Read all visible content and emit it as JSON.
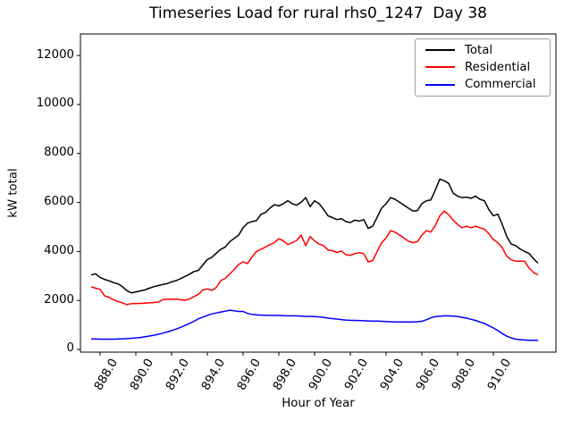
{
  "chart_data": {
    "type": "line",
    "title": "Timeseries Load for rural rhs0_1247  Day 38",
    "xlabel": "Hour of Year",
    "ylabel": "kW total",
    "xlim": [
      886.9,
      913.5
    ],
    "ylim": [
      -110,
      12880
    ],
    "xticks": [
      888,
      890,
      892,
      894,
      896,
      898,
      900,
      902,
      904,
      906,
      908,
      910
    ],
    "xtick_labels": [
      "888.0",
      "890.0",
      "892.0",
      "894.0",
      "896.0",
      "898.0",
      "900.0",
      "902.0",
      "904.0",
      "906.0",
      "908.0",
      "910.0"
    ],
    "yticks": [
      0,
      2000,
      4000,
      6000,
      8000,
      10000,
      12000
    ],
    "ytick_labels": [
      "0",
      "2000",
      "4000",
      "6000",
      "8000",
      "10000",
      "12000"
    ],
    "grid": false,
    "legend_position": "upper right",
    "x_start": 887.5,
    "x_step": 0.25,
    "series": [
      {
        "name": "Total",
        "color": "#000000",
        "values": [
          3040,
          3090,
          2940,
          2860,
          2800,
          2730,
          2680,
          2560,
          2400,
          2310,
          2350,
          2390,
          2430,
          2500,
          2560,
          2610,
          2650,
          2690,
          2760,
          2810,
          2890,
          2980,
          3070,
          3180,
          3230,
          3450,
          3670,
          3760,
          3930,
          4090,
          4180,
          4400,
          4530,
          4670,
          4970,
          5160,
          5220,
          5260,
          5520,
          5590,
          5770,
          5910,
          5860,
          5950,
          6070,
          5950,
          5890,
          6010,
          6200,
          5830,
          6070,
          5950,
          5720,
          5460,
          5380,
          5300,
          5340,
          5220,
          5180,
          5280,
          5240,
          5300,
          4940,
          5030,
          5400,
          5770,
          5950,
          6200,
          6130,
          6010,
          5890,
          5770,
          5650,
          5670,
          5950,
          6070,
          6100,
          6500,
          6950,
          6890,
          6780,
          6380,
          6260,
          6200,
          6220,
          6170,
          6260,
          6130,
          6070,
          5710,
          5460,
          5520,
          5100,
          4610,
          4300,
          4240,
          4100,
          4000,
          3920,
          3700,
          3520
        ]
      },
      {
        "name": "Residential",
        "color": "#ff0000",
        "values": [
          2560,
          2500,
          2450,
          2190,
          2130,
          2030,
          1960,
          1900,
          1830,
          1870,
          1875,
          1880,
          1890,
          1900,
          1915,
          1930,
          2030,
          2050,
          2050,
          2050,
          2030,
          2010,
          2060,
          2160,
          2250,
          2430,
          2470,
          2410,
          2530,
          2810,
          2900,
          3080,
          3260,
          3470,
          3570,
          3510,
          3780,
          4000,
          4090,
          4180,
          4280,
          4360,
          4520,
          4430,
          4280,
          4360,
          4450,
          4670,
          4240,
          4610,
          4430,
          4300,
          4240,
          4060,
          4030,
          3960,
          4020,
          3870,
          3840,
          3910,
          3950,
          3910,
          3570,
          3630,
          4000,
          4360,
          4550,
          4850,
          4790,
          4670,
          4550,
          4420,
          4360,
          4400,
          4670,
          4850,
          4790,
          5050,
          5450,
          5650,
          5500,
          5280,
          5100,
          4970,
          5030,
          4970,
          5030,
          4970,
          4910,
          4730,
          4490,
          4360,
          4150,
          3810,
          3660,
          3610,
          3600,
          3600,
          3320,
          3140,
          3050
        ]
      },
      {
        "name": "Commercial",
        "color": "#0000ff",
        "values": [
          430,
          425,
          420,
          418,
          418,
          420,
          425,
          432,
          442,
          455,
          470,
          490,
          515,
          545,
          580,
          620,
          665,
          715,
          770,
          830,
          900,
          980,
          1060,
          1150,
          1250,
          1320,
          1390,
          1450,
          1490,
          1530,
          1560,
          1600,
          1580,
          1550,
          1550,
          1470,
          1430,
          1410,
          1400,
          1395,
          1390,
          1390,
          1390,
          1380,
          1370,
          1370,
          1370,
          1360,
          1350,
          1350,
          1340,
          1330,
          1310,
          1280,
          1260,
          1240,
          1220,
          1200,
          1190,
          1185,
          1180,
          1170,
          1165,
          1160,
          1160,
          1150,
          1140,
          1130,
          1125,
          1125,
          1120,
          1120,
          1125,
          1130,
          1150,
          1210,
          1290,
          1340,
          1360,
          1370,
          1370,
          1360,
          1345,
          1310,
          1280,
          1230,
          1185,
          1120,
          1060,
          970,
          880,
          770,
          650,
          540,
          470,
          420,
          400,
          385,
          375,
          370,
          370
        ]
      }
    ]
  }
}
